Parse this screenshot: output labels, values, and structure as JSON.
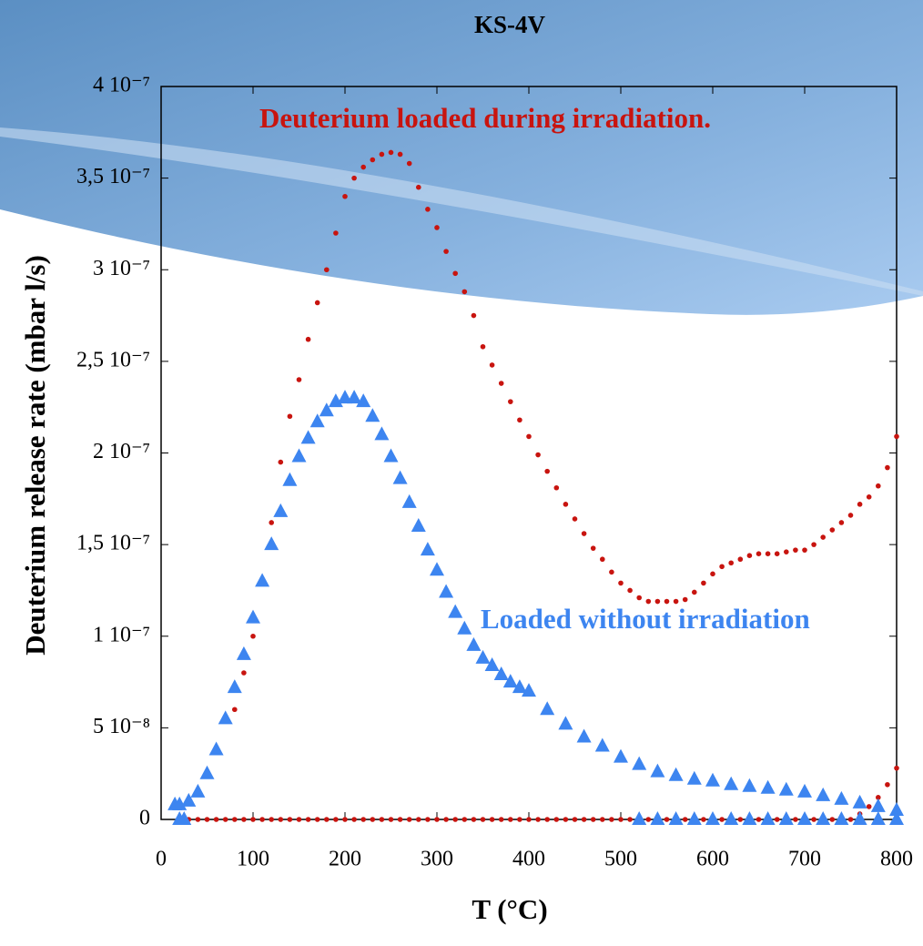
{
  "chart_data": {
    "type": "scatter",
    "title": "KS-4V",
    "xlabel": "T (°C)",
    "ylabel": "Deuterium release rate (mbar l/s)",
    "xlim": [
      0,
      800
    ],
    "ylim": [
      0,
      4e-07
    ],
    "xticks": [
      0,
      100,
      200,
      300,
      400,
      500,
      600,
      700,
      800
    ],
    "yticks": [
      0,
      {
        "value": 5e-08,
        "label": "5 10⁻⁸"
      },
      {
        "value": 1e-07,
        "label": "1 10⁻⁷"
      },
      {
        "value": 1.5e-07,
        "label": "1,5 10⁻⁷"
      },
      {
        "value": 2e-07,
        "label": "2 10⁻⁷"
      },
      {
        "value": 2.5e-07,
        "label": "2,5 10⁻⁷"
      },
      {
        "value": 3e-07,
        "label": "3 10⁻⁷"
      },
      {
        "value": 3.5e-07,
        "label": "3,5 10⁻⁷"
      },
      {
        "value": 4e-07,
        "label": "4 10⁻⁷"
      }
    ],
    "annotations": [
      {
        "text": "Deuterium  loaded during irradiation.",
        "color": "#c8140f"
      },
      {
        "text": "Loaded without irradiation",
        "color": "#3d85f0"
      }
    ],
    "series": [
      {
        "name": "Deuterium  loaded during irradiation.",
        "color": "#c8140f",
        "marker": "circle",
        "x": [
          80,
          90,
          100,
          110,
          120,
          130,
          140,
          150,
          160,
          170,
          180,
          190,
          200,
          210,
          220,
          230,
          240,
          250,
          260,
          270,
          280,
          290,
          300,
          310,
          320,
          330,
          340,
          350,
          360,
          370,
          380,
          390,
          400,
          410,
          420,
          430,
          440,
          450,
          460,
          470,
          480,
          490,
          500,
          510,
          520,
          530,
          540,
          550,
          560,
          570,
          580,
          590,
          600,
          610,
          620,
          630,
          640,
          650,
          660,
          670,
          680,
          690,
          700,
          710,
          720,
          730,
          740,
          750,
          760,
          770,
          780,
          790,
          800
        ],
        "values": [
          6e-08,
          8e-08,
          1e-07,
          1.3e-07,
          1.62e-07,
          1.95e-07,
          2.2e-07,
          2.4e-07,
          2.62e-07,
          2.82e-07,
          3e-07,
          3.2e-07,
          3.4e-07,
          3.5e-07,
          3.56e-07,
          3.6e-07,
          3.63e-07,
          3.64e-07,
          3.63e-07,
          3.58e-07,
          3.45e-07,
          3.33e-07,
          3.23e-07,
          3.1e-07,
          2.98e-07,
          2.88e-07,
          2.75e-07,
          2.58e-07,
          2.48e-07,
          2.38e-07,
          2.28e-07,
          2.18e-07,
          2.09e-07,
          1.99e-07,
          1.9e-07,
          1.81e-07,
          1.72e-07,
          1.64e-07,
          1.56e-07,
          1.48e-07,
          1.42e-07,
          1.35e-07,
          1.29e-07,
          1.25e-07,
          1.21e-07,
          1.19e-07,
          1.19e-07,
          1.19e-07,
          1.19e-07,
          1.2e-07,
          1.24e-07,
          1.29e-07,
          1.34e-07,
          1.38e-07,
          1.4e-07,
          1.42e-07,
          1.44e-07,
          1.45e-07,
          1.45e-07,
          1.45e-07,
          1.46e-07,
          1.47e-07,
          1.47e-07,
          1.5e-07,
          1.54e-07,
          1.58e-07,
          1.62e-07,
          1.66e-07,
          1.72e-07,
          1.76e-07,
          1.82e-07,
          1.92e-07,
          2.09e-07
        ]
      },
      {
        "color": "#c8140f",
        "marker": "circle",
        "x": [
          30,
          40,
          50,
          60,
          70,
          80,
          90,
          100,
          110,
          120,
          130,
          140,
          150,
          160,
          170,
          180,
          190,
          200,
          210,
          220,
          230,
          240,
          250,
          260,
          270,
          280,
          290,
          300,
          310,
          320,
          330,
          340,
          350,
          360,
          370,
          380,
          390,
          400,
          410,
          420,
          430,
          440,
          450,
          460,
          470,
          480,
          490,
          500,
          510,
          520,
          530,
          540,
          550,
          560,
          570,
          580,
          590,
          600,
          610,
          620,
          630,
          640,
          650,
          660,
          670,
          680,
          690,
          700,
          710,
          720,
          730,
          740,
          750,
          760,
          770,
          780,
          790,
          800
        ],
        "values": [
          0,
          0,
          0,
          0,
          0,
          0,
          0,
          0,
          0,
          0,
          0,
          0,
          0,
          0,
          0,
          0,
          0,
          0,
          0,
          0,
          0,
          0,
          0,
          0,
          0,
          0,
          0,
          0,
          0,
          0,
          0,
          0,
          0,
          0,
          0,
          0,
          0,
          0,
          0,
          0,
          0,
          0,
          0,
          0,
          0,
          0,
          0,
          0,
          0,
          0,
          0,
          0,
          0,
          0,
          0,
          0,
          0,
          0,
          0,
          0,
          0,
          0,
          0,
          0,
          0,
          0,
          0,
          0,
          0,
          0,
          0,
          0,
          0,
          3e-09,
          7e-09,
          1.2e-08,
          1.9e-08,
          2.8e-08
        ]
      },
      {
        "name": "Loaded without irradiation",
        "color": "#3d85f0",
        "marker": "triangle",
        "x": [
          15,
          20,
          30,
          40,
          50,
          60,
          70,
          80,
          90,
          100,
          110,
          120,
          130,
          140,
          150,
          160,
          170,
          180,
          190,
          200,
          210,
          220,
          230,
          240,
          250,
          260,
          270,
          280,
          290,
          300,
          310,
          320,
          330,
          340,
          350,
          360,
          370,
          380,
          390,
          400,
          420,
          440,
          460,
          480,
          500,
          520,
          540,
          560,
          580,
          600,
          620,
          640,
          660,
          680,
          700,
          720,
          740,
          760,
          780,
          800
        ],
        "values": [
          8e-09,
          8e-09,
          1e-08,
          1.5e-08,
          2.5e-08,
          3.8e-08,
          5.5e-08,
          7.2e-08,
          9e-08,
          1.1e-07,
          1.3e-07,
          1.5e-07,
          1.68e-07,
          1.85e-07,
          1.98e-07,
          2.08e-07,
          2.17e-07,
          2.23e-07,
          2.28e-07,
          2.3e-07,
          2.3e-07,
          2.28e-07,
          2.2e-07,
          2.1e-07,
          1.98e-07,
          1.86e-07,
          1.73e-07,
          1.6e-07,
          1.47e-07,
          1.36e-07,
          1.24e-07,
          1.13e-07,
          1.04e-07,
          9.5e-08,
          8.8e-08,
          8.4e-08,
          7.9e-08,
          7.5e-08,
          7.2e-08,
          7e-08,
          6e-08,
          5.2e-08,
          4.5e-08,
          4e-08,
          3.4e-08,
          3e-08,
          2.6e-08,
          2.4e-08,
          2.2e-08,
          2.1e-08,
          1.9e-08,
          1.8e-08,
          1.7e-08,
          1.6e-08,
          1.5e-08,
          1.3e-08,
          1.1e-08,
          9e-09,
          7e-09,
          5e-09
        ]
      },
      {
        "color": "#3d85f0",
        "marker": "triangle",
        "x": [
          20,
          25,
          520,
          540,
          560,
          580,
          600,
          620,
          640,
          660,
          680,
          700,
          720,
          740,
          760,
          780,
          800
        ],
        "values": [
          0,
          0,
          0,
          0,
          0,
          0,
          0,
          0,
          0,
          0,
          0,
          0,
          0,
          0,
          0,
          0,
          0
        ]
      }
    ]
  }
}
